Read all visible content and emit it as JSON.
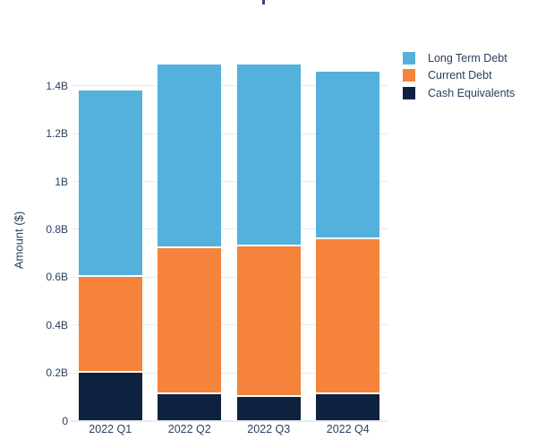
{
  "colors": {
    "text": "#2a3f5f",
    "grid": "#e3ecf6",
    "background": "#ffffff",
    "segment_gap": "#ffffff"
  },
  "chart_data": {
    "type": "bar",
    "stacked": true,
    "title": "",
    "xlabel": "",
    "ylabel": "Amount ($)",
    "units": "billions (B) of dollars",
    "categories": [
      "2022 Q1",
      "2022 Q2",
      "2022 Q3",
      "2022 Q4"
    ],
    "series": [
      {
        "name": "Long Term Debt",
        "color": "#53b1dc",
        "values": [
          0.78,
          0.77,
          0.76,
          0.7
        ]
      },
      {
        "name": "Current Debt",
        "color": "#f5833b",
        "values": [
          0.4,
          0.61,
          0.63,
          0.65
        ]
      },
      {
        "name": "Cash Equivalents",
        "color": "#0e2240",
        "values": [
          0.2,
          0.11,
          0.1,
          0.11
        ]
      }
    ],
    "stack_order_bottom_to_top": [
      "Cash Equivalents",
      "Current Debt",
      "Long Term Debt"
    ],
    "stack_totals": [
      1.38,
      1.49,
      1.49,
      1.46
    ],
    "ylim": [
      0,
      1.55
    ],
    "yticks": [
      {
        "value": 0.0,
        "label": "0"
      },
      {
        "value": 0.2,
        "label": "0.2B"
      },
      {
        "value": 0.4,
        "label": "0.4B"
      },
      {
        "value": 0.6,
        "label": "0.6B"
      },
      {
        "value": 0.8,
        "label": "0.8B"
      },
      {
        "value": 1.0,
        "label": "1B"
      },
      {
        "value": 1.2,
        "label": "1.2B"
      },
      {
        "value": 1.4,
        "label": "1.4B"
      }
    ],
    "grid": "horizontal",
    "legend_position": "outside-top-right",
    "legend_order": [
      "Long Term Debt",
      "Current Debt",
      "Cash Equivalents"
    ]
  }
}
